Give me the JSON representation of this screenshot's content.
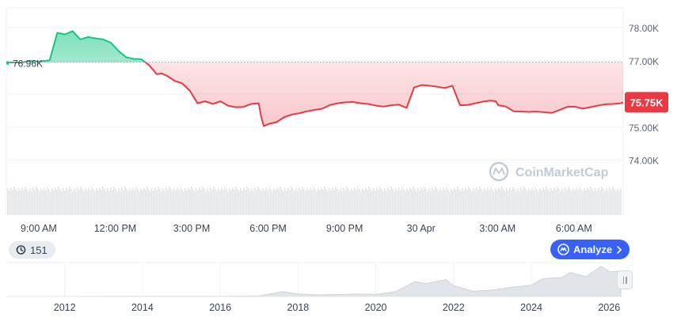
{
  "colors": {
    "up": "#16c784",
    "down": "#ea3943",
    "grid": "#eff2f5",
    "axis_text": "#58667e",
    "watermark": "#c3cad6",
    "accent": "#3861fb"
  },
  "chart_data": {
    "type": "line",
    "ylim": [
      73300,
      78600
    ],
    "ytick_values": [
      74000,
      75000,
      76000,
      77000,
      78000
    ],
    "ytick_labels": [
      "74.00K",
      "75.00K",
      "",
      "77.00K",
      "78.00K"
    ],
    "xlim": [
      0,
      24.2
    ],
    "xtick_values": [
      1.27,
      4.27,
      7.27,
      10.27,
      13.27,
      16.27,
      19.27,
      22.27
    ],
    "xtick_labels": [
      "9:00 AM",
      "12:00 PM",
      "3:00 PM",
      "6:00 PM",
      "9:00 PM",
      "30 Apr",
      "3:00 AM",
      "6:00 AM"
    ],
    "baseline": {
      "value": 76960,
      "label": "76.96K"
    },
    "last_price": {
      "value": 75750,
      "label": "75.75K"
    },
    "x": [
      0,
      0.6,
      0.9,
      1.3,
      1.7,
      2.0,
      2.3,
      2.6,
      2.9,
      3.2,
      3.5,
      3.8,
      4.1,
      4.4,
      4.7,
      5.0,
      5.3,
      5.6,
      5.9,
      6.1,
      6.3,
      6.6,
      6.9,
      7.2,
      7.5,
      7.8,
      8.1,
      8.4,
      8.7,
      9.0,
      9.3,
      9.6,
      9.9,
      10.0,
      10.1,
      10.3,
      10.6,
      10.9,
      11.2,
      11.5,
      11.8,
      12.1,
      12.4,
      12.7,
      13.0,
      13.3,
      13.6,
      13.9,
      14.2,
      14.5,
      14.8,
      15.1,
      15.4,
      15.7,
      16.0,
      16.3,
      16.6,
      16.9,
      17.2,
      17.5,
      17.8,
      18.1,
      18.4,
      18.7,
      19.0,
      19.2,
      19.3,
      19.6,
      19.9,
      20.2,
      20.5,
      20.8,
      21.1,
      21.4,
      21.7,
      22.0,
      22.3,
      22.6,
      22.9,
      23.2,
      23.5,
      23.8,
      24.1,
      24.2
    ],
    "y": [
      76960,
      76950,
      77000,
      76980,
      77020,
      77850,
      77800,
      77900,
      77650,
      77720,
      77680,
      77650,
      77550,
      77300,
      77110,
      77060,
      77050,
      76870,
      76600,
      76620,
      76550,
      76400,
      76320,
      76100,
      75720,
      75780,
      75700,
      75780,
      75650,
      75600,
      75610,
      75700,
      75720,
      75300,
      75030,
      75100,
      75150,
      75300,
      75380,
      75420,
      75480,
      75520,
      75560,
      75670,
      75720,
      75750,
      75760,
      75720,
      75700,
      75650,
      75620,
      75660,
      75680,
      75580,
      76200,
      76270,
      76250,
      76220,
      76180,
      76250,
      75660,
      75670,
      75720,
      75770,
      75800,
      75780,
      75660,
      75620,
      75480,
      75470,
      75460,
      75470,
      75450,
      75430,
      75520,
      75610,
      75620,
      75560,
      75600,
      75650,
      75690,
      75700,
      75720,
      75750
    ],
    "volume_note": "",
    "brush": {
      "xtick_labels": [
        "2012",
        "2014",
        "2016",
        "2018",
        "2020",
        "2022",
        "2024",
        "2026"
      ],
      "xtick_values": [
        2012,
        2014,
        2016,
        2018,
        2020,
        2022,
        2024,
        2026
      ],
      "xlim": [
        2010.5,
        2026.3
      ],
      "years": [
        2010.5,
        2012,
        2013,
        2014,
        2015,
        2016,
        2017,
        2017.6,
        2018,
        2018.5,
        2019,
        2019.5,
        2020,
        2020.5,
        2021,
        2021.3,
        2021.8,
        2022,
        2022.5,
        2023,
        2023.5,
        2024,
        2024.3,
        2024.8,
        2025,
        2025.4,
        2025.8,
        2026,
        2026.3
      ],
      "levels": [
        0,
        0,
        0.005,
        0.005,
        0.005,
        0.008,
        0.02,
        0.16,
        0.08,
        0.05,
        0.06,
        0.08,
        0.07,
        0.15,
        0.48,
        0.42,
        0.55,
        0.35,
        0.17,
        0.21,
        0.3,
        0.37,
        0.58,
        0.62,
        0.78,
        0.64,
        0.98,
        0.8,
        0.82
      ]
    }
  },
  "watermark": {
    "text": "CoinMarketCap"
  },
  "history_badge": {
    "count": "151"
  },
  "analyze_button": {
    "label": "Analyze"
  }
}
